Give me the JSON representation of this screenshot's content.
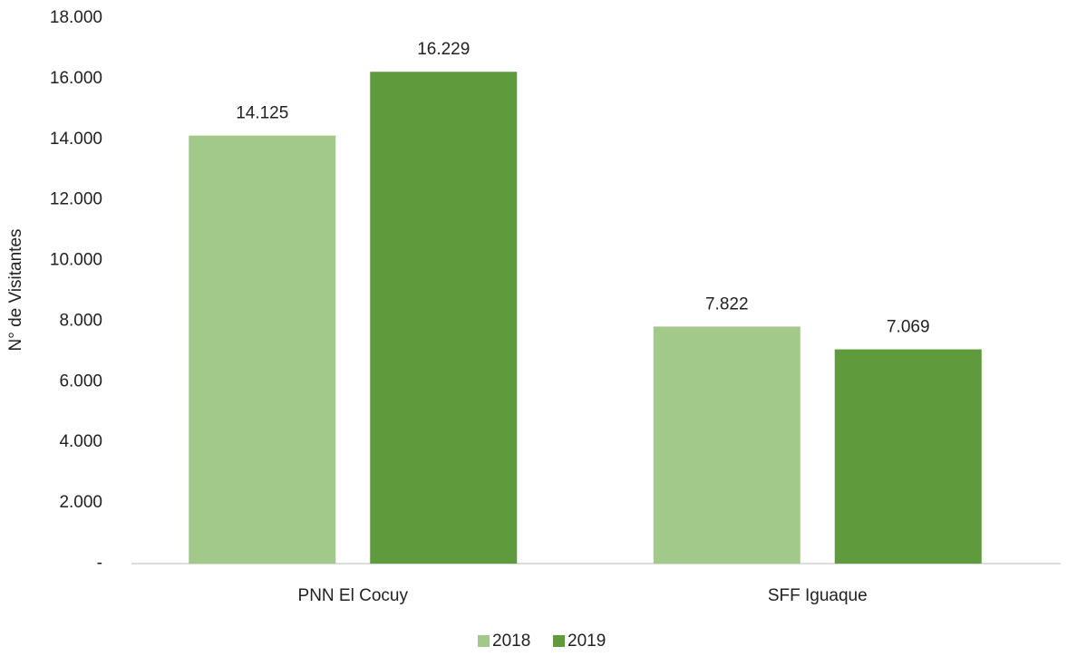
{
  "chart_data": {
    "type": "bar",
    "y_label": "N° de Visitantes",
    "categories": [
      "PNN El Cocuy",
      "SFF Iguaque"
    ],
    "series": [
      {
        "name": "2018",
        "color": "#a3c98a",
        "values": [
          14125,
          7822
        ],
        "value_labels": [
          "14.125",
          "7.822"
        ]
      },
      {
        "name": "2019",
        "color": "#5f9a3c",
        "values": [
          16229,
          7069
        ],
        "value_labels": [
          "16.229",
          "7.069"
        ]
      }
    ],
    "ylim": [
      0,
      18000
    ],
    "yticks": [
      {
        "value": 0,
        "label": "-"
      },
      {
        "value": 2000,
        "label": "2.000"
      },
      {
        "value": 4000,
        "label": "4.000"
      },
      {
        "value": 6000,
        "label": "6.000"
      },
      {
        "value": 8000,
        "label": "8.000"
      },
      {
        "value": 10000,
        "label": "10.000"
      },
      {
        "value": 12000,
        "label": "12.000"
      },
      {
        "value": 14000,
        "label": "14.000"
      },
      {
        "value": 16000,
        "label": "16.000"
      },
      {
        "value": 18000,
        "label": "18.000"
      }
    ],
    "grid": false,
    "legend": "bottom"
  }
}
